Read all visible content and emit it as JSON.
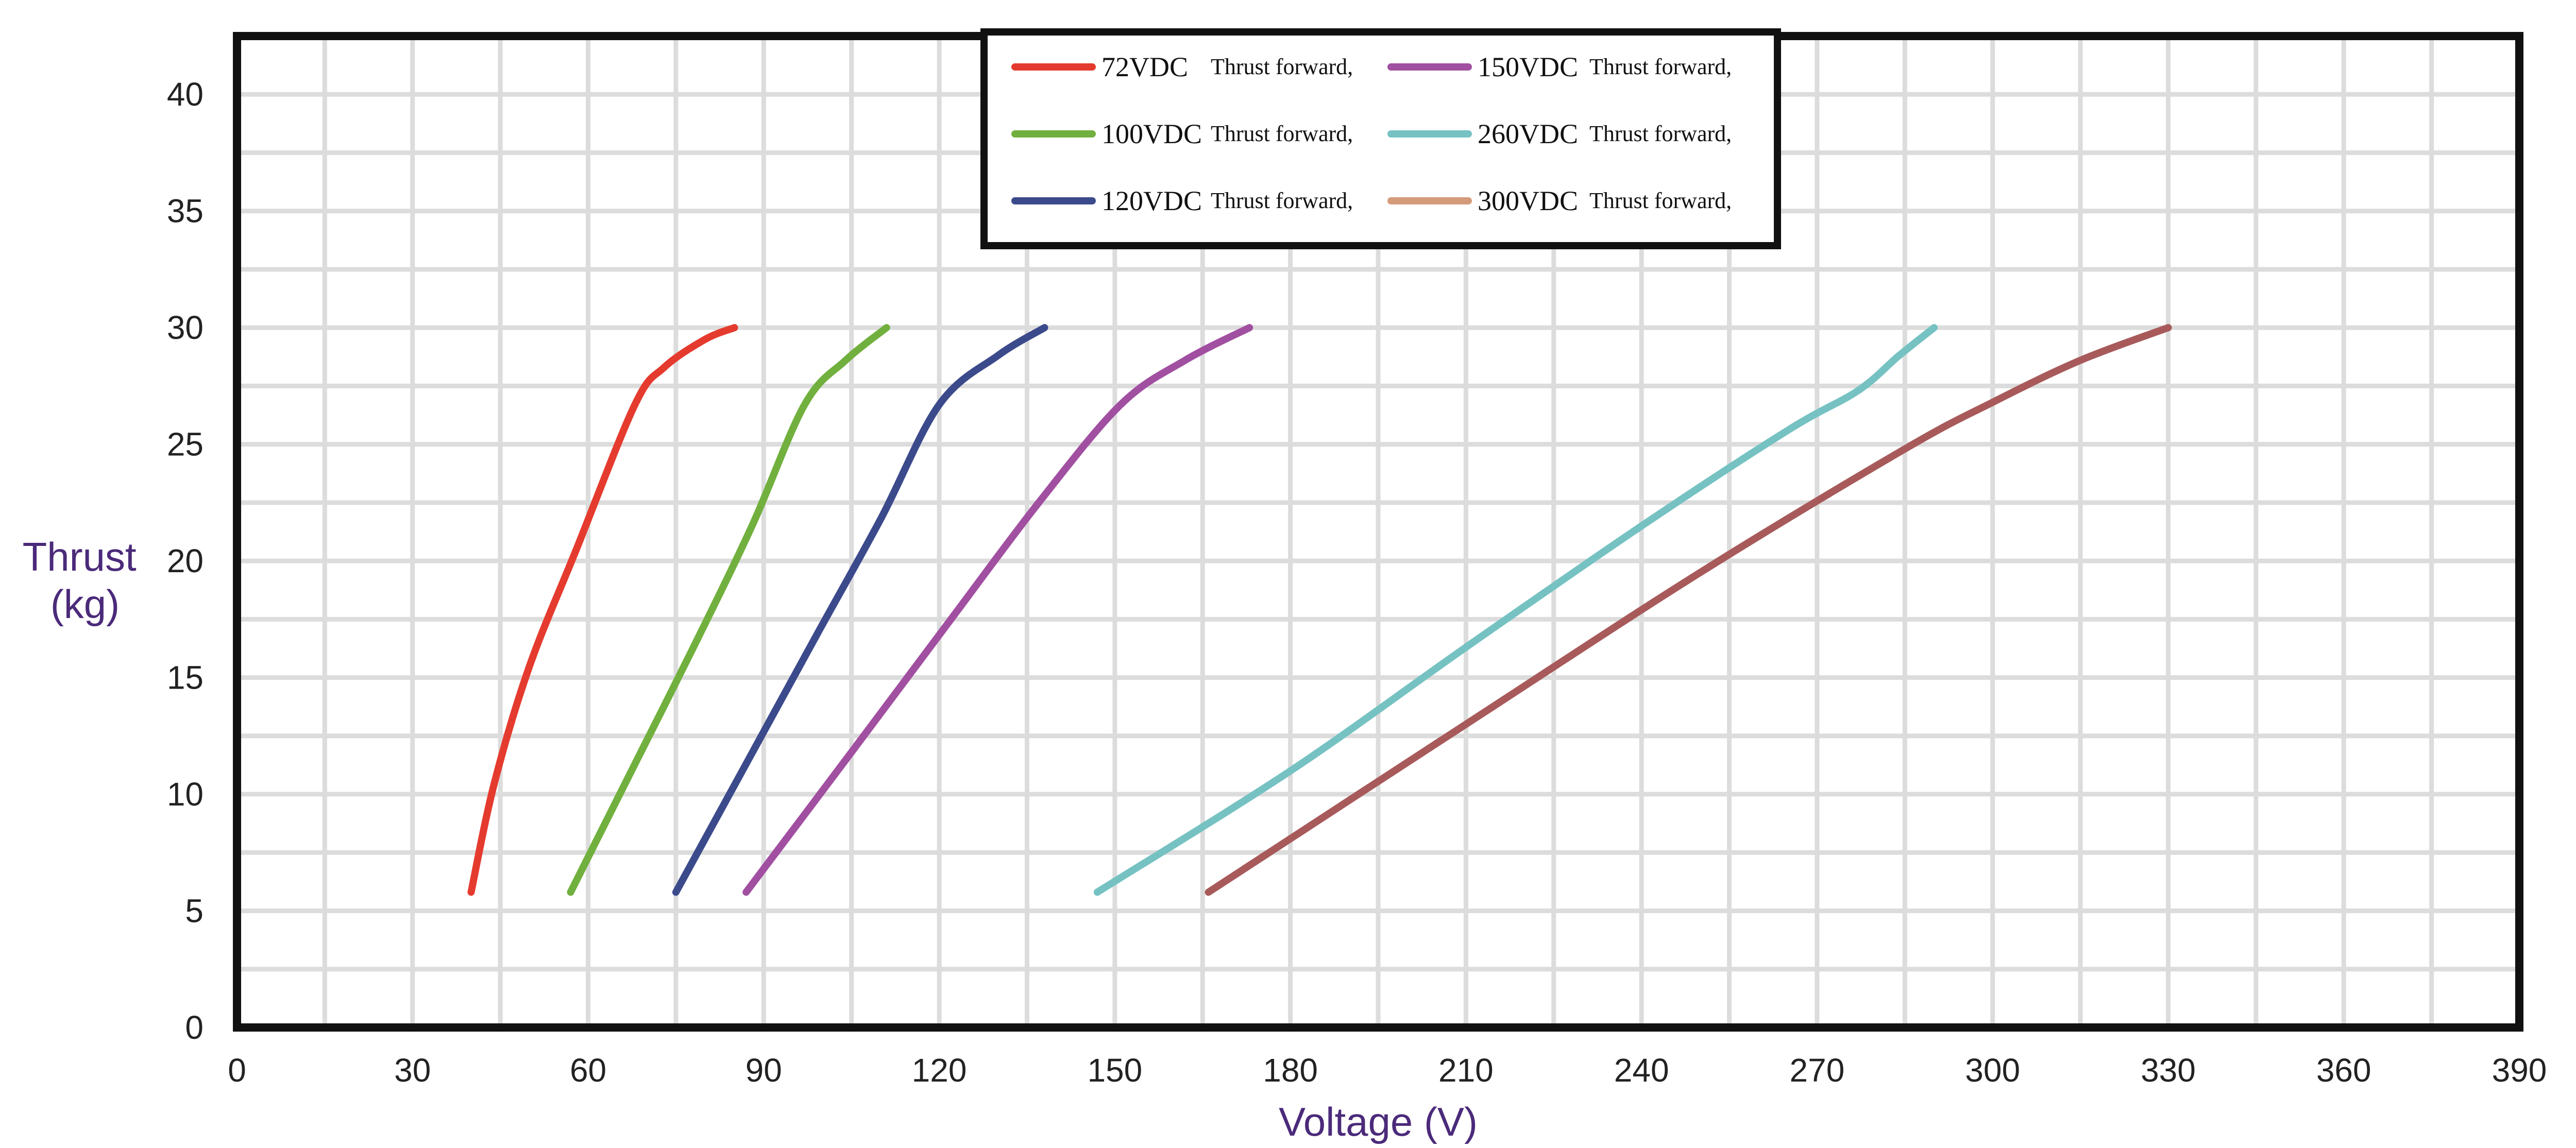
{
  "chart_data": {
    "type": "line",
    "xlabel": "Voltage (V)",
    "ylabel_lines": [
      "Thrust",
      "(kg)"
    ],
    "xlim": [
      0,
      390
    ],
    "ylim": [
      0,
      42.5
    ],
    "x_ticks": [
      0,
      30,
      60,
      90,
      120,
      150,
      180,
      210,
      240,
      270,
      300,
      330,
      360,
      390
    ],
    "y_ticks": [
      0,
      5,
      10,
      15,
      20,
      25,
      30,
      35,
      40
    ],
    "grid": true,
    "legend_position": "top-center",
    "series": [
      {
        "name": "72VDC",
        "desc": "Thrust forward,",
        "color": "#e53b2f",
        "points": [
          [
            40,
            5.8
          ],
          [
            44,
            10.5
          ],
          [
            50,
            15.5
          ],
          [
            58,
            20.5
          ],
          [
            68,
            26.7
          ],
          [
            73,
            28.3
          ],
          [
            80,
            29.5
          ],
          [
            85,
            30
          ]
        ]
      },
      {
        "name": "100VDC",
        "desc": "Thrust forward,",
        "color": "#71b03e",
        "points": [
          [
            57,
            5.8
          ],
          [
            67,
            10.8
          ],
          [
            78,
            16.3
          ],
          [
            88,
            21.5
          ],
          [
            97,
            26.7
          ],
          [
            104,
            28.6
          ],
          [
            111,
            30
          ]
        ]
      },
      {
        "name": "120VDC",
        "desc": "Thrust forward,",
        "color": "#3b4a8b",
        "points": [
          [
            75,
            5.8
          ],
          [
            87,
            11.3
          ],
          [
            99,
            16.8
          ],
          [
            110,
            21.8
          ],
          [
            120,
            26.7
          ],
          [
            130,
            28.8
          ],
          [
            138,
            30
          ]
        ]
      },
      {
        "name": "150VDC",
        "desc": "Thrust forward,",
        "color": "#a14fa1",
        "points": [
          [
            87,
            5.8
          ],
          [
            105,
            11.8
          ],
          [
            122,
            17.5
          ],
          [
            137,
            22.5
          ],
          [
            151,
            26.7
          ],
          [
            162,
            28.6
          ],
          [
            173,
            30
          ]
        ]
      },
      {
        "name": "260VDC",
        "desc": "Thrust forward,",
        "color": "#76c2c3",
        "points": [
          [
            147,
            5.8
          ],
          [
            180,
            11
          ],
          [
            210,
            16.3
          ],
          [
            240,
            21.5
          ],
          [
            265,
            25.6
          ],
          [
            277,
            27.3
          ],
          [
            284,
            28.8
          ],
          [
            290,
            30
          ]
        ]
      },
      {
        "name": "300VDC",
        "desc": "Thrust forward,",
        "color": "#a85a5a",
        "legend_color": "#d59a7a",
        "points": [
          [
            166,
            5.8
          ],
          [
            210,
            13
          ],
          [
            250,
            19.5
          ],
          [
            285,
            24.8
          ],
          [
            300,
            26.8
          ],
          [
            315,
            28.6
          ],
          [
            330,
            30
          ]
        ]
      }
    ]
  }
}
